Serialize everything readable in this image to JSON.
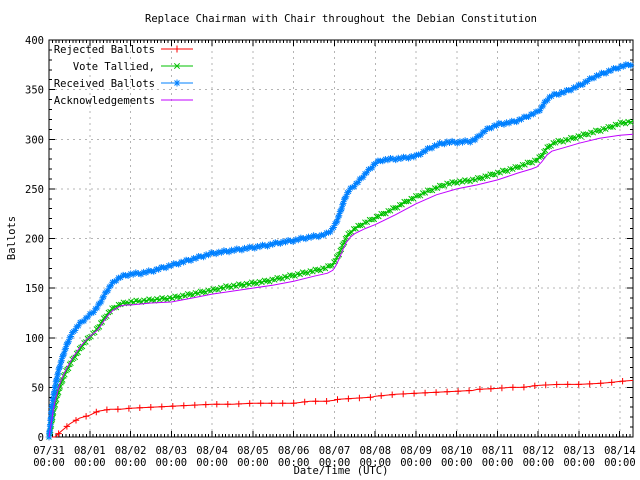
{
  "chart_data": {
    "type": "line",
    "title": "Replace Chairman with Chair throughout the Debian Constitution",
    "xlabel": "Date/Time (UTC)",
    "ylabel": "Ballots",
    "ylim": [
      0,
      400
    ],
    "y_tick_step": 50,
    "y_minor_step": 10,
    "x_range_days": [
      0,
      14.32
    ],
    "x_minor_step_days": 0.0833,
    "grid": true,
    "legend_position": "top-left",
    "x_ticks": [
      {
        "date": "07/31",
        "time": "00:00"
      },
      {
        "date": "08/01",
        "time": "00:00"
      },
      {
        "date": "08/02",
        "time": "00:00"
      },
      {
        "date": "08/03",
        "time": "00:00"
      },
      {
        "date": "08/04",
        "time": "00:00"
      },
      {
        "date": "08/05",
        "time": "00:00"
      },
      {
        "date": "08/06",
        "time": "00:00"
      },
      {
        "date": "08/07",
        "time": "00:00"
      },
      {
        "date": "08/08",
        "time": "00:00"
      },
      {
        "date": "08/09",
        "time": "00:00"
      },
      {
        "date": "08/10",
        "time": "00:00"
      },
      {
        "date": "08/11",
        "time": "00:00"
      },
      {
        "date": "08/12",
        "time": "00:00"
      },
      {
        "date": "08/13",
        "time": "00:00"
      },
      {
        "date": "08/14",
        "time": "00:00"
      }
    ],
    "series": [
      {
        "name": "Rejected Ballots",
        "color": "#ff0000",
        "marker": "plus",
        "points": [
          [
            0,
            0
          ],
          [
            0.15,
            0
          ],
          [
            0.2,
            2
          ],
          [
            0.25,
            4
          ],
          [
            0.33,
            7
          ],
          [
            0.42,
            10
          ],
          [
            0.5,
            13
          ],
          [
            0.58,
            15
          ],
          [
            0.67,
            17
          ],
          [
            0.75,
            19
          ],
          [
            0.83,
            20
          ],
          [
            0.92,
            21
          ],
          [
            1,
            22
          ],
          [
            1.1,
            24
          ],
          [
            1.2,
            26
          ],
          [
            1.35,
            27
          ],
          [
            1.5,
            28
          ],
          [
            1.75,
            28
          ],
          [
            2,
            29
          ],
          [
            2.5,
            30
          ],
          [
            3,
            31
          ],
          [
            3.5,
            32
          ],
          [
            4,
            33
          ],
          [
            4.5,
            33
          ],
          [
            5,
            34
          ],
          [
            5.5,
            34
          ],
          [
            6,
            34
          ],
          [
            6.2,
            35
          ],
          [
            6.4,
            36
          ],
          [
            6.8,
            36
          ],
          [
            7,
            37
          ],
          [
            7.1,
            38
          ],
          [
            7.5,
            39
          ],
          [
            7.9,
            40
          ],
          [
            8,
            41
          ],
          [
            8.5,
            43
          ],
          [
            9,
            44
          ],
          [
            9.5,
            45
          ],
          [
            10,
            46
          ],
          [
            10.4,
            47
          ],
          [
            10.5,
            48
          ],
          [
            11,
            49
          ],
          [
            11.3,
            50
          ],
          [
            11.6,
            50
          ],
          [
            12,
            52
          ],
          [
            12.5,
            53
          ],
          [
            13,
            53
          ],
          [
            13.5,
            54
          ],
          [
            13.8,
            55
          ],
          [
            14,
            56
          ],
          [
            14.32,
            57
          ]
        ]
      },
      {
        "name": "Vote Tallied,",
        "color": "#00c000",
        "marker": "cross",
        "points": [
          [
            0,
            0
          ],
          [
            0.04,
            8
          ],
          [
            0.08,
            18
          ],
          [
            0.12,
            28
          ],
          [
            0.17,
            36
          ],
          [
            0.22,
            44
          ],
          [
            0.28,
            52
          ],
          [
            0.35,
            60
          ],
          [
            0.42,
            66
          ],
          [
            0.5,
            72
          ],
          [
            0.58,
            78
          ],
          [
            0.67,
            83
          ],
          [
            0.75,
            88
          ],
          [
            0.83,
            93
          ],
          [
            0.92,
            97
          ],
          [
            1,
            101
          ],
          [
            1.08,
            104
          ],
          [
            1.17,
            108
          ],
          [
            1.25,
            113
          ],
          [
            1.33,
            118
          ],
          [
            1.42,
            123
          ],
          [
            1.5,
            127
          ],
          [
            1.58,
            130
          ],
          [
            1.67,
            132
          ],
          [
            1.75,
            134
          ],
          [
            1.88,
            135
          ],
          [
            2,
            136
          ],
          [
            2.25,
            137
          ],
          [
            2.5,
            138
          ],
          [
            2.75,
            139
          ],
          [
            3,
            140
          ],
          [
            3.25,
            142
          ],
          [
            3.5,
            144
          ],
          [
            3.75,
            146
          ],
          [
            4,
            148
          ],
          [
            4.33,
            151
          ],
          [
            4.67,
            153
          ],
          [
            5,
            155
          ],
          [
            5.33,
            157
          ],
          [
            5.67,
            160
          ],
          [
            6,
            163
          ],
          [
            6.33,
            166
          ],
          [
            6.67,
            169
          ],
          [
            6.83,
            171
          ],
          [
            6.96,
            174
          ],
          [
            7.04,
            179
          ],
          [
            7.13,
            186
          ],
          [
            7.21,
            194
          ],
          [
            7.29,
            201
          ],
          [
            7.38,
            206
          ],
          [
            7.5,
            210
          ],
          [
            7.63,
            213
          ],
          [
            7.75,
            216
          ],
          [
            7.92,
            219
          ],
          [
            8,
            221
          ],
          [
            8.25,
            226
          ],
          [
            8.5,
            231
          ],
          [
            8.75,
            237
          ],
          [
            9,
            242
          ],
          [
            9.25,
            247
          ],
          [
            9.5,
            251
          ],
          [
            9.75,
            255
          ],
          [
            10,
            257
          ],
          [
            10.25,
            258
          ],
          [
            10.5,
            260
          ],
          [
            10.75,
            263
          ],
          [
            11,
            266
          ],
          [
            11.25,
            269
          ],
          [
            11.5,
            272
          ],
          [
            11.75,
            276
          ],
          [
            11.96,
            279
          ],
          [
            12.08,
            283
          ],
          [
            12.17,
            289
          ],
          [
            12.29,
            294
          ],
          [
            12.42,
            297
          ],
          [
            12.67,
            299
          ],
          [
            12.83,
            301
          ],
          [
            13,
            303
          ],
          [
            13.25,
            306
          ],
          [
            13.5,
            309
          ],
          [
            13.75,
            312
          ],
          [
            14,
            316
          ],
          [
            14.32,
            318
          ]
        ]
      },
      {
        "name": "Received Ballots",
        "color": "#0080ff",
        "marker": "star",
        "points": [
          [
            0,
            0
          ],
          [
            0.03,
            12
          ],
          [
            0.06,
            25
          ],
          [
            0.1,
            38
          ],
          [
            0.14,
            48
          ],
          [
            0.18,
            57
          ],
          [
            0.23,
            66
          ],
          [
            0.29,
            75
          ],
          [
            0.36,
            84
          ],
          [
            0.43,
            92
          ],
          [
            0.5,
            99
          ],
          [
            0.58,
            105
          ],
          [
            0.67,
            110
          ],
          [
            0.75,
            114
          ],
          [
            0.83,
            117
          ],
          [
            0.92,
            120
          ],
          [
            1,
            123
          ],
          [
            1.08,
            126
          ],
          [
            1.17,
            130
          ],
          [
            1.25,
            135
          ],
          [
            1.33,
            141
          ],
          [
            1.42,
            147
          ],
          [
            1.5,
            152
          ],
          [
            1.58,
            156
          ],
          [
            1.67,
            159
          ],
          [
            1.75,
            161
          ],
          [
            1.88,
            163
          ],
          [
            2,
            164
          ],
          [
            2.25,
            165
          ],
          [
            2.5,
            167
          ],
          [
            2.75,
            170
          ],
          [
            3,
            173
          ],
          [
            3.25,
            176
          ],
          [
            3.5,
            179
          ],
          [
            3.75,
            182
          ],
          [
            4,
            185
          ],
          [
            4.33,
            187
          ],
          [
            4.67,
            189
          ],
          [
            5,
            191
          ],
          [
            5.33,
            193
          ],
          [
            5.67,
            196
          ],
          [
            6,
            198
          ],
          [
            6.33,
            201
          ],
          [
            6.67,
            203
          ],
          [
            6.83,
            205
          ],
          [
            6.96,
            210
          ],
          [
            7.04,
            216
          ],
          [
            7.1,
            222
          ],
          [
            7.17,
            230
          ],
          [
            7.25,
            240
          ],
          [
            7.33,
            247
          ],
          [
            7.42,
            251
          ],
          [
            7.58,
            257
          ],
          [
            7.75,
            265
          ],
          [
            7.92,
            272
          ],
          [
            8,
            276
          ],
          [
            8.17,
            279
          ],
          [
            8.42,
            280
          ],
          [
            8.67,
            281
          ],
          [
            9,
            283
          ],
          [
            9.17,
            287
          ],
          [
            9.33,
            291
          ],
          [
            9.5,
            294
          ],
          [
            9.67,
            296
          ],
          [
            9.75,
            297
          ],
          [
            10,
            297
          ],
          [
            10.33,
            298
          ],
          [
            10.46,
            300
          ],
          [
            10.58,
            305
          ],
          [
            10.71,
            309
          ],
          [
            10.83,
            312
          ],
          [
            10.96,
            314
          ],
          [
            11,
            315
          ],
          [
            11.17,
            316
          ],
          [
            11.33,
            317
          ],
          [
            11.5,
            319
          ],
          [
            11.67,
            322
          ],
          [
            11.83,
            325
          ],
          [
            11.96,
            327
          ],
          [
            12.04,
            330
          ],
          [
            12.13,
            335
          ],
          [
            12.21,
            340
          ],
          [
            12.33,
            344
          ],
          [
            12.5,
            346
          ],
          [
            12.67,
            348
          ],
          [
            12.83,
            351
          ],
          [
            13,
            354
          ],
          [
            13.13,
            357
          ],
          [
            13.25,
            360
          ],
          [
            13.38,
            363
          ],
          [
            13.5,
            365
          ],
          [
            13.63,
            367
          ],
          [
            13.75,
            369
          ],
          [
            13.88,
            371
          ],
          [
            14,
            373
          ],
          [
            14.32,
            376
          ]
        ]
      },
      {
        "name": "Acknowledgements",
        "color": "#c000ff",
        "marker": "none",
        "points": [
          [
            0,
            0
          ],
          [
            0.04,
            10
          ],
          [
            0.08,
            21
          ],
          [
            0.12,
            31
          ],
          [
            0.17,
            39
          ],
          [
            0.22,
            47
          ],
          [
            0.28,
            55
          ],
          [
            0.35,
            62
          ],
          [
            0.42,
            68
          ],
          [
            0.5,
            74
          ],
          [
            0.58,
            80
          ],
          [
            0.67,
            85
          ],
          [
            0.75,
            90
          ],
          [
            0.83,
            94
          ],
          [
            0.92,
            98
          ],
          [
            1,
            101
          ],
          [
            1.08,
            104
          ],
          [
            1.17,
            107
          ],
          [
            1.25,
            111
          ],
          [
            1.33,
            116
          ],
          [
            1.42,
            121
          ],
          [
            1.5,
            125
          ],
          [
            1.58,
            128
          ],
          [
            1.67,
            130
          ],
          [
            1.75,
            132
          ],
          [
            1.88,
            133
          ],
          [
            2,
            133
          ],
          [
            2.5,
            135
          ],
          [
            3,
            136
          ],
          [
            3.5,
            140
          ],
          [
            4,
            144
          ],
          [
            4.5,
            147
          ],
          [
            5,
            150
          ],
          [
            5.5,
            153
          ],
          [
            6,
            157
          ],
          [
            6.5,
            162
          ],
          [
            6.83,
            165
          ],
          [
            6.96,
            168
          ],
          [
            7.04,
            173
          ],
          [
            7.13,
            181
          ],
          [
            7.21,
            189
          ],
          [
            7.29,
            196
          ],
          [
            7.38,
            201
          ],
          [
            7.5,
            205
          ],
          [
            7.75,
            210
          ],
          [
            8,
            214
          ],
          [
            8.5,
            224
          ],
          [
            9,
            235
          ],
          [
            9.5,
            244
          ],
          [
            10,
            250
          ],
          [
            10.5,
            254
          ],
          [
            11,
            259
          ],
          [
            11.5,
            266
          ],
          [
            11.83,
            270
          ],
          [
            11.96,
            272
          ],
          [
            12.08,
            277
          ],
          [
            12.21,
            284
          ],
          [
            12.33,
            288
          ],
          [
            12.67,
            292
          ],
          [
            13,
            296
          ],
          [
            13.5,
            301
          ],
          [
            14,
            304
          ],
          [
            14.32,
            305
          ]
        ]
      }
    ],
    "colors": {
      "background": "#ffffff",
      "border": "#000000",
      "grid": "#b4b4b4",
      "text": "#000000"
    }
  }
}
